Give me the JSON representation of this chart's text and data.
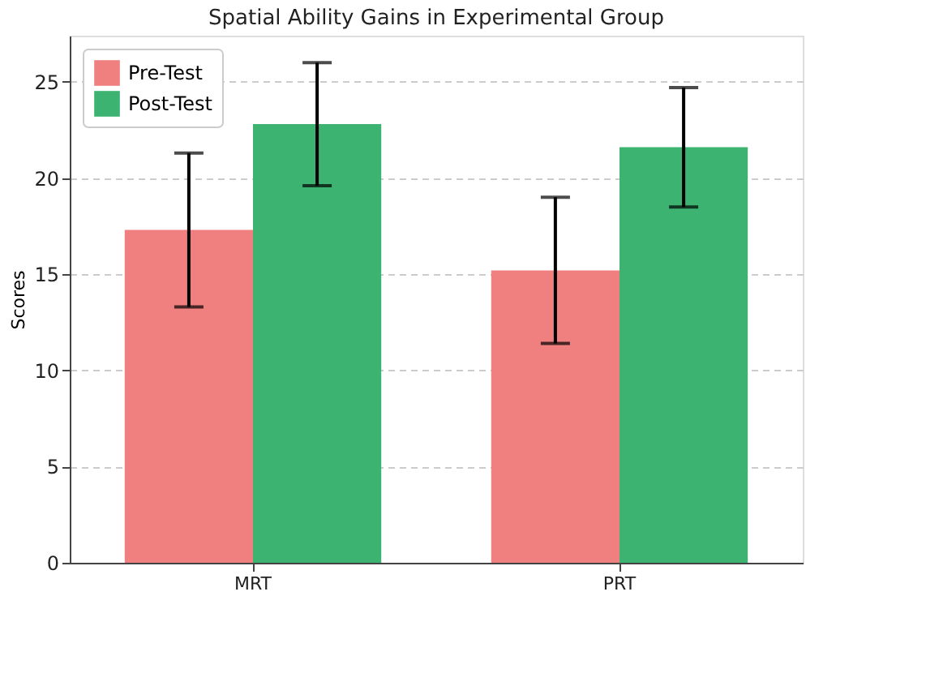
{
  "chart_data": {
    "type": "bar",
    "title": "Spatial Ability Gains in Experimental Group",
    "ylabel": "Scores",
    "categories": [
      "MRT",
      "PRT"
    ],
    "series": [
      {
        "name": "Pre-Test",
        "color": "#f08080",
        "values": [
          17.3,
          15.2
        ],
        "errors": [
          4.0,
          3.8
        ]
      },
      {
        "name": "Post-Test",
        "color": "#3cb371",
        "values": [
          22.8,
          21.6
        ],
        "errors": [
          3.2,
          3.1
        ]
      }
    ],
    "ylim": [
      0,
      27.4
    ],
    "yticks": [
      0,
      5,
      10,
      15,
      20,
      25
    ],
    "grid": "y",
    "legend": "top left"
  }
}
